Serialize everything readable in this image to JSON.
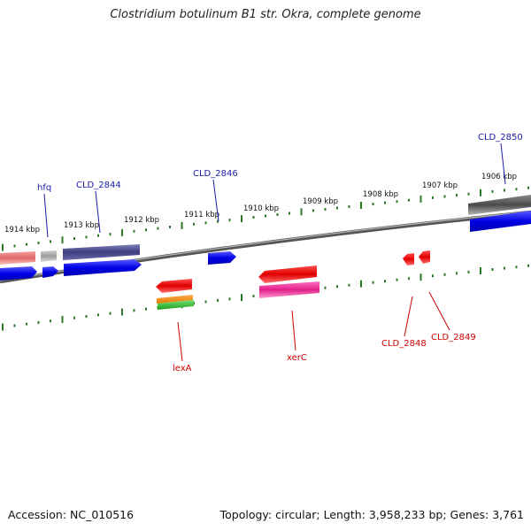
{
  "title": "Clostridium botulinum B1 str. Okra, complete genome",
  "footer": {
    "accession": "Accession: NC_010516",
    "topology": "Topology: circular; Length: 3,958,233 bp; Genes: 3,761"
  },
  "scale_labels": [
    "1914 kbp",
    "1913 kbp",
    "1912 kbp",
    "1911 kbp",
    "1910 kbp",
    "1909 kbp",
    "1908 kbp",
    "1907 kbp",
    "1906 kbp"
  ],
  "forward_genes": [
    {
      "label": "hfq",
      "color": "#1a1aa8"
    },
    {
      "label": "CLD_2844",
      "color": "#1a1aa8"
    },
    {
      "label": "CLD_2846",
      "color": "#1a1aa8"
    },
    {
      "label": "CLD_2850",
      "color": "#1a1aa8"
    }
  ],
  "reverse_genes": [
    {
      "label": "lexA",
      "color": "#d00000"
    },
    {
      "label": "xerC",
      "color": "#d00000"
    },
    {
      "label": "CLD_2848",
      "color": "#d00000"
    },
    {
      "label": "CLD_2849",
      "color": "#d00000"
    }
  ]
}
